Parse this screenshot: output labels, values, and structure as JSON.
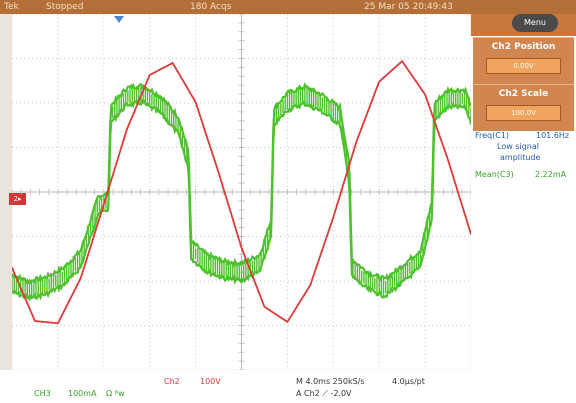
{
  "status_bar": {
    "brand": "Tek",
    "acq_state": "Stopped",
    "acq_count": "180 Acqs",
    "datetime": "25 Mar 05 20:49:43"
  },
  "markers": {
    "channel_ground": "2▸"
  },
  "side_panel": {
    "menu_label": "Menu",
    "position_title": "Ch2 Position",
    "position_value": "0.00V",
    "scale_title": "Ch2 Scale",
    "scale_value": "100.0V"
  },
  "measurements": {
    "freq_label": "Freq(C1)",
    "freq_value": "101.6Hz",
    "freq_note_1": "Low signal",
    "freq_note_2": "amplitude",
    "mean_label": "Mean(C3)",
    "mean_value": "2.22mA"
  },
  "readouts": {
    "ch3": "CH3",
    "ch3_scale": "100mA",
    "ch3_bw": "Ω  ᴮw",
    "ch2": "Ch2",
    "ch2_scale": "100V",
    "timebase": "M 4.0ms 250kS/s",
    "timebase_per_pt": "4.0µs/pt",
    "trigger": "A  Ch2  ⟋  -2.0V"
  },
  "colors": {
    "ch2_trace": "#dd3a3a",
    "ch3_trace": "#4fc02e",
    "grid": "#b9b9b9",
    "status_bar": "#b46f38",
    "panel": "#d18650",
    "panel_value_box": "#f0a45d",
    "meas_blue": "#2a59a8",
    "meas_green": "#36a02a"
  },
  "chart_data": {
    "type": "line",
    "title": "",
    "xlabel": "",
    "ylabel": "",
    "x_divisions": 10,
    "y_divisions": 8,
    "xlim": [
      -20,
      20
    ],
    "ylim": [
      -400,
      400
    ],
    "series": [
      {
        "name": "Ch2",
        "x": [
          -20,
          -18,
          -16,
          -14,
          -12,
          -10,
          -8,
          -6,
          -4,
          -2,
          0,
          2,
          4,
          6,
          8,
          10,
          12,
          14,
          16,
          18,
          20
        ],
        "values": [
          -170,
          -290,
          -295,
          -193,
          -28,
          140,
          263,
          290,
          202,
          44,
          -125,
          -258,
          -292,
          -209,
          -57,
          112,
          248,
          294,
          219,
          72,
          -95
        ]
      },
      {
        "name": "CH3",
        "x": [
          -20,
          -18.5,
          -17,
          -15.5,
          -14,
          -12.5,
          -11.6,
          -11.4,
          -10,
          -8.6,
          -7,
          -5.5,
          -4.6,
          -4.4,
          -3,
          -1.5,
          0,
          1.6,
          2.6,
          2.8,
          4,
          5.5,
          7,
          8.6,
          9.4,
          9.6,
          11,
          12.5,
          14,
          15.6,
          16.6,
          16.8,
          18,
          19.5,
          20
        ],
        "values": [
          -205,
          -220,
          -210,
          -190,
          -150,
          -30,
          -20,
          175,
          215,
          220,
          195,
          150,
          70,
          -130,
          -160,
          -175,
          -180,
          -160,
          -80,
          168,
          203,
          218,
          200,
          170,
          40,
          -170,
          -200,
          -215,
          -185,
          -150,
          -40,
          180,
          210,
          210,
          175
        ]
      }
    ]
  }
}
